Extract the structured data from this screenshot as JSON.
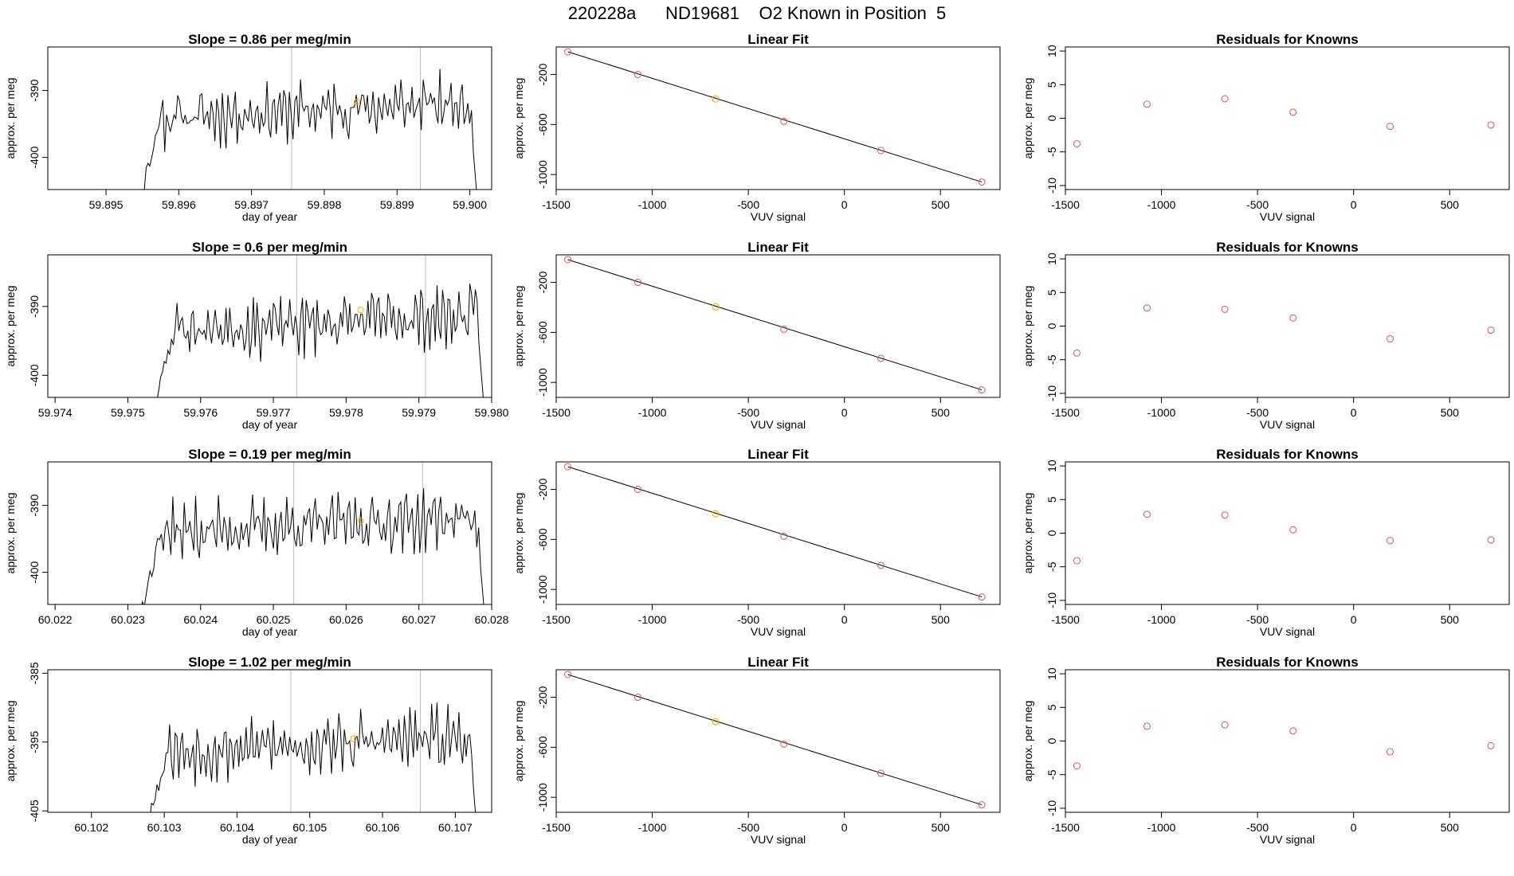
{
  "page": {
    "title": "220228a      ND19681    O2 Known in Position  5"
  },
  "colors": {
    "line": "#000000",
    "fit_point": "#cd5c5c",
    "highlight_point": "#ffa500",
    "vertical_marker": "#bebebe"
  },
  "chart_data": [
    {
      "type": "line",
      "row": 0,
      "col": 0,
      "title": "Slope =  0.86  per meg/min",
      "xlabel": "day of year",
      "ylabel": "approx. per meg",
      "xlim": [
        59.8942,
        59.9003
      ],
      "ylim": [
        -404.8,
        -383.5
      ],
      "xticks": [
        59.895,
        59.896,
        59.897,
        59.898,
        59.899,
        59.9
      ],
      "xtick_labels": [
        "59.895",
        "59.896",
        "59.897",
        "59.898",
        "59.899",
        "59.900"
      ],
      "yticks": [
        -390,
        -400
      ],
      "ytick_labels": [
        "-390",
        "-400"
      ],
      "vlines": [
        59.89755,
        59.89932
      ],
      "highlight": [
        59.89845,
        -391.7
      ],
      "series_start": 59.8955,
      "series_end": 59.9001,
      "series_mean": -393.0,
      "seed": 11
    },
    {
      "type": "scatter",
      "row": 0,
      "col": 1,
      "title": "Linear Fit",
      "xlabel": "VUV signal",
      "ylabel": "approx. per meg",
      "xlim": [
        -1500,
        810
      ],
      "ylim": [
        -1120,
        20
      ],
      "xticks": [
        -1500,
        -1000,
        -500,
        0,
        500
      ],
      "xtick_labels": [
        "-1500",
        "-1000",
        "-500",
        "0",
        "500"
      ],
      "yticks": [
        -200,
        -600,
        -1000
      ],
      "ytick_labels": [
        "-200",
        "-600",
        "-1000"
      ],
      "x": [
        -1440,
        -1075,
        -670,
        -315,
        190,
        715
      ],
      "y": [
        -18,
        -200,
        -395,
        -575,
        -808,
        -1060
      ],
      "highlight_index": 2,
      "fit_line": [
        [
          -1440,
          -18
        ],
        [
          715,
          -1060
        ]
      ]
    },
    {
      "type": "scatter",
      "row": 0,
      "col": 2,
      "title": "Residuals for Knowns",
      "xlabel": "VUV signal",
      "ylabel": "approx. per meg",
      "xlim": [
        -1500,
        810
      ],
      "ylim": [
        -10.6,
        10.6
      ],
      "xticks": [
        -1500,
        -1000,
        -500,
        0,
        500
      ],
      "xtick_labels": [
        "-1500",
        "-1000",
        "-500",
        "0",
        "500"
      ],
      "yticks": [
        10,
        5,
        0,
        -5,
        -10
      ],
      "ytick_labels": [
        "10",
        "5",
        "0",
        "-5",
        "-10"
      ],
      "x": [
        -1440,
        -1075,
        -670,
        -315,
        190,
        715
      ],
      "y": [
        -3.8,
        2.1,
        2.9,
        0.9,
        -1.2,
        -1.0
      ]
    },
    {
      "type": "line",
      "row": 1,
      "col": 0,
      "title": "Slope =  0.6  per meg/min",
      "xlabel": "day of year",
      "ylabel": "approx. per meg",
      "xlim": [
        59.9739,
        59.98
      ],
      "ylim": [
        -403.2,
        -382.5
      ],
      "xticks": [
        59.974,
        59.975,
        59.976,
        59.977,
        59.978,
        59.979,
        59.98
      ],
      "xtick_labels": [
        "59.974",
        "59.975",
        "59.976",
        "59.977",
        "59.978",
        "59.979",
        "59.980"
      ],
      "yticks": [
        -390,
        -400
      ],
      "ytick_labels": [
        "-390",
        "-400"
      ],
      "vlines": [
        59.97732,
        59.97909
      ],
      "highlight": [
        59.9782,
        -390.5
      ],
      "series_start": 59.9754,
      "series_end": 59.9799,
      "series_mean": -392.4,
      "seed": 23
    },
    {
      "type": "scatter",
      "row": 1,
      "col": 1,
      "title": "Linear Fit",
      "xlabel": "VUV signal",
      "ylabel": "approx. per meg",
      "xlim": [
        -1500,
        810
      ],
      "ylim": [
        -1120,
        20
      ],
      "xticks": [
        -1500,
        -1000,
        -500,
        0,
        500
      ],
      "xtick_labels": [
        "-1500",
        "-1000",
        "-500",
        "0",
        "500"
      ],
      "yticks": [
        -200,
        -600,
        -1000
      ],
      "ytick_labels": [
        "-200",
        "-600",
        "-1000"
      ],
      "x": [
        -1440,
        -1075,
        -670,
        -315,
        190,
        715
      ],
      "y": [
        -18,
        -200,
        -395,
        -575,
        -808,
        -1060
      ],
      "highlight_index": 2,
      "fit_line": [
        [
          -1440,
          -18
        ],
        [
          715,
          -1060
        ]
      ]
    },
    {
      "type": "scatter",
      "row": 1,
      "col": 2,
      "title": "Residuals for Knowns",
      "xlabel": "VUV signal",
      "ylabel": "approx. per meg",
      "xlim": [
        -1500,
        810
      ],
      "ylim": [
        -10.6,
        10.6
      ],
      "xticks": [
        -1500,
        -1000,
        -500,
        0,
        500
      ],
      "xtick_labels": [
        "-1500",
        "-1000",
        "-500",
        "0",
        "500"
      ],
      "yticks": [
        10,
        5,
        0,
        -5,
        -10
      ],
      "ytick_labels": [
        "10",
        "5",
        "0",
        "-5",
        "-10"
      ],
      "x": [
        -1440,
        -1075,
        -670,
        -315,
        190,
        715
      ],
      "y": [
        -4.0,
        2.7,
        2.5,
        1.2,
        -1.9,
        -0.6
      ]
    },
    {
      "type": "line",
      "row": 2,
      "col": 0,
      "title": "Slope =  0.19  per meg/min",
      "xlabel": "day of year",
      "ylabel": "approx. per meg",
      "xlim": [
        60.0219,
        60.028
      ],
      "ylim": [
        -404.8,
        -383.5
      ],
      "xticks": [
        60.022,
        60.023,
        60.024,
        60.025,
        60.026,
        60.027,
        60.028
      ],
      "xtick_labels": [
        "60.022",
        "60.023",
        "60.024",
        "60.025",
        "60.026",
        "60.027",
        "60.028"
      ],
      "yticks": [
        -390,
        -400
      ],
      "ytick_labels": [
        "-390",
        "-400"
      ],
      "vlines": [
        60.02528,
        60.02705
      ],
      "highlight": [
        60.0262,
        -392.3
      ],
      "series_start": 60.0232,
      "series_end": 60.0279,
      "series_mean": -393.0,
      "seed": 37
    },
    {
      "type": "scatter",
      "row": 2,
      "col": 1,
      "title": "Linear Fit",
      "xlabel": "VUV signal",
      "ylabel": "approx. per meg",
      "xlim": [
        -1500,
        810
      ],
      "ylim": [
        -1120,
        20
      ],
      "xticks": [
        -1500,
        -1000,
        -500,
        0,
        500
      ],
      "xtick_labels": [
        "-1500",
        "-1000",
        "-500",
        "0",
        "500"
      ],
      "yticks": [
        -200,
        -600,
        -1000
      ],
      "ytick_labels": [
        "-200",
        "-600",
        "-1000"
      ],
      "x": [
        -1440,
        -1075,
        -670,
        -315,
        190,
        715
      ],
      "y": [
        -18,
        -200,
        -395,
        -575,
        -808,
        -1060
      ],
      "highlight_index": 2,
      "fit_line": [
        [
          -1440,
          -18
        ],
        [
          715,
          -1060
        ]
      ]
    },
    {
      "type": "scatter",
      "row": 2,
      "col": 2,
      "title": "Residuals for Knowns",
      "xlabel": "VUV signal",
      "ylabel": "approx. per meg",
      "xlim": [
        -1500,
        810
      ],
      "ylim": [
        -10.6,
        10.6
      ],
      "xticks": [
        -1500,
        -1000,
        -500,
        0,
        500
      ],
      "xtick_labels": [
        "-1500",
        "-1000",
        "-500",
        "0",
        "500"
      ],
      "yticks": [
        10,
        5,
        0,
        -5,
        -10
      ],
      "ytick_labels": [
        "10",
        "5",
        "0",
        "-5",
        "-10"
      ],
      "x": [
        -1440,
        -1075,
        -670,
        -315,
        190,
        715
      ],
      "y": [
        -4.1,
        2.8,
        2.7,
        0.5,
        -1.1,
        -1.0
      ]
    },
    {
      "type": "line",
      "row": 3,
      "col": 0,
      "title": "Slope =  1.02  per meg/min",
      "xlabel": "day of year",
      "ylabel": "approx. per meg",
      "xlim": [
        60.1014,
        60.1075
      ],
      "ylim": [
        -405.2,
        -384.5
      ],
      "xticks": [
        60.102,
        60.103,
        60.104,
        60.105,
        60.106,
        60.107
      ],
      "xtick_labels": [
        "60.102",
        "60.103",
        "60.104",
        "60.105",
        "60.106",
        "60.107"
      ],
      "yticks": [
        -385,
        -395,
        -405
      ],
      "ytick_labels": [
        "-385",
        "-395",
        "-405"
      ],
      "vlines": [
        60.10474,
        60.10652
      ],
      "highlight": [
        60.1056,
        -394.5
      ],
      "series_start": 60.1028,
      "series_end": 60.1073,
      "series_mean": -395.4,
      "seed": 53
    },
    {
      "type": "scatter",
      "row": 3,
      "col": 1,
      "title": "Linear Fit",
      "xlabel": "VUV signal",
      "ylabel": "approx. per meg",
      "xlim": [
        -1500,
        810
      ],
      "ylim": [
        -1120,
        20
      ],
      "xticks": [
        -1500,
        -1000,
        -500,
        0,
        500
      ],
      "xtick_labels": [
        "-1500",
        "-1000",
        "-500",
        "0",
        "500"
      ],
      "yticks": [
        -200,
        -600,
        -1000
      ],
      "ytick_labels": [
        "-200",
        "-600",
        "-1000"
      ],
      "x": [
        -1440,
        -1075,
        -670,
        -315,
        190,
        715
      ],
      "y": [
        -18,
        -200,
        -395,
        -575,
        -808,
        -1060
      ],
      "highlight_index": 2,
      "fit_line": [
        [
          -1440,
          -18
        ],
        [
          715,
          -1060
        ]
      ]
    },
    {
      "type": "scatter",
      "row": 3,
      "col": 2,
      "title": "Residuals for Knowns",
      "xlabel": "VUV signal",
      "ylabel": "approx. per meg",
      "xlim": [
        -1500,
        810
      ],
      "ylim": [
        -10.6,
        10.6
      ],
      "xticks": [
        -1500,
        -1000,
        -500,
        0,
        500
      ],
      "xtick_labels": [
        "-1500",
        "-1000",
        "-500",
        "0",
        "500"
      ],
      "yticks": [
        10,
        5,
        0,
        -5,
        -10
      ],
      "ytick_labels": [
        "10",
        "5",
        "0",
        "-5",
        "-10"
      ],
      "x": [
        -1440,
        -1075,
        -670,
        -315,
        190,
        715
      ],
      "y": [
        -3.7,
        2.2,
        2.4,
        1.5,
        -1.6,
        -0.7
      ]
    }
  ]
}
